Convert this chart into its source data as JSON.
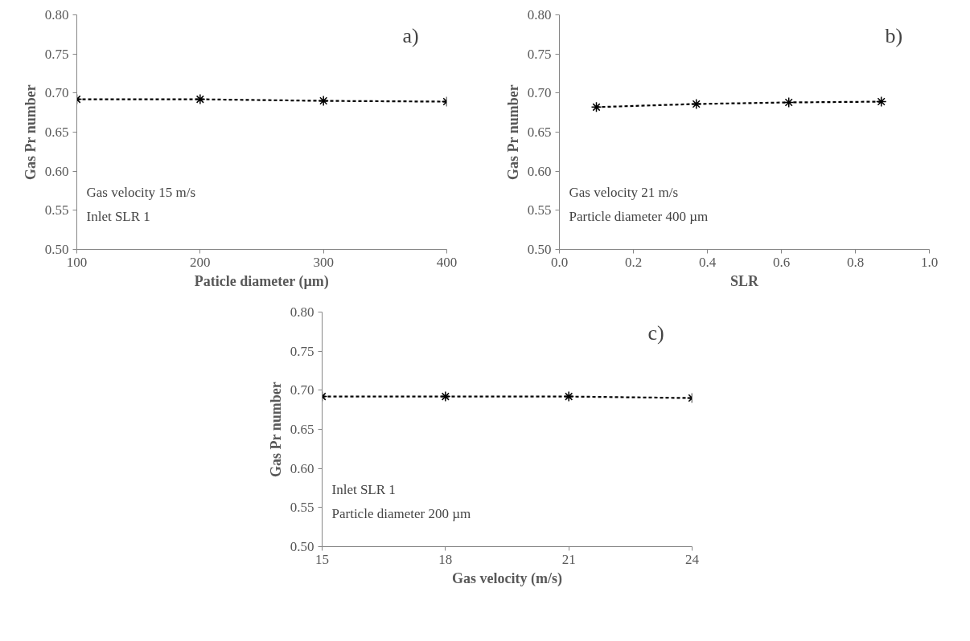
{
  "chart_data": [
    {
      "type": "line",
      "xlabel": "Paticle diameter (µm)",
      "ylabel": "Gas Pr number",
      "x": [
        100,
        200,
        300,
        400
      ],
      "series": [
        {
          "color": "#000000",
          "values": [
            0.692,
            0.692,
            0.69,
            0.689
          ]
        }
      ],
      "xlim": [
        100,
        400
      ],
      "xticks": [
        100,
        200,
        300,
        400
      ],
      "ylim": [
        0.5,
        0.8
      ],
      "yticks": [
        {
          "value": 0.5,
          "label": "0.50"
        },
        {
          "value": 0.55,
          "label": "0.55"
        },
        {
          "value": 0.6,
          "label": "0.60"
        },
        {
          "value": 0.65,
          "label": "0.65"
        },
        {
          "value": 0.7,
          "label": "0.70"
        },
        {
          "value": 0.75,
          "label": "0.75"
        },
        {
          "value": 0.8,
          "label": "0.80"
        }
      ],
      "annotations": [
        "a)",
        "Gas velocity 15 m/s",
        "Inlet SLR 1"
      ],
      "marker": "cross",
      "line_style": "dashed",
      "grid": false
    },
    {
      "type": "line",
      "xlabel": "SLR",
      "ylabel": "Gas Pr number",
      "x": [
        0.1,
        0.37,
        0.62,
        0.87
      ],
      "series": [
        {
          "color": "#000000",
          "values": [
            0.682,
            0.686,
            0.688,
            0.689
          ]
        }
      ],
      "xlim": [
        0,
        1
      ],
      "xticks": [
        {
          "value": 0,
          "label": "0.0"
        },
        0.2,
        0.4,
        0.6,
        0.8,
        {
          "value": 1,
          "label": "1.0"
        }
      ],
      "ylim": [
        0.5,
        0.8
      ],
      "yticks": [
        {
          "value": 0.5,
          "label": "0.50"
        },
        {
          "value": 0.55,
          "label": "0.55"
        },
        {
          "value": 0.6,
          "label": "0.60"
        },
        {
          "value": 0.65,
          "label": "0.65"
        },
        {
          "value": 0.7,
          "label": "0.70"
        },
        {
          "value": 0.75,
          "label": "0.75"
        },
        {
          "value": 0.8,
          "label": "0.80"
        }
      ],
      "annotations": [
        "b)",
        "Gas velocity 21 m/s",
        "Particle diameter 400 µm"
      ],
      "marker": "cross",
      "line_style": "dashed",
      "grid": false
    },
    {
      "type": "line",
      "xlabel": "Gas velocity (m/s)",
      "ylabel": "Gas Pr number",
      "x": [
        15,
        18,
        21,
        24
      ],
      "series": [
        {
          "color": "#000000",
          "values": [
            0.692,
            0.692,
            0.692,
            0.69
          ]
        }
      ],
      "xlim": [
        15,
        24
      ],
      "xticks": [
        15,
        18,
        21,
        24
      ],
      "ylim": [
        0.5,
        0.8
      ],
      "yticks": [
        {
          "value": 0.5,
          "label": "0.50"
        },
        {
          "value": 0.55,
          "label": "0.55"
        },
        {
          "value": 0.6,
          "label": "0.60"
        },
        {
          "value": 0.65,
          "label": "0.65"
        },
        {
          "value": 0.7,
          "label": "0.70"
        },
        {
          "value": 0.75,
          "label": "0.75"
        },
        {
          "value": 0.8,
          "label": "0.80"
        }
      ],
      "annotations": [
        "c)",
        "Inlet SLR 1",
        "Particle diameter 200 µm"
      ],
      "marker": "cross",
      "line_style": "dashed",
      "grid": false
    }
  ]
}
